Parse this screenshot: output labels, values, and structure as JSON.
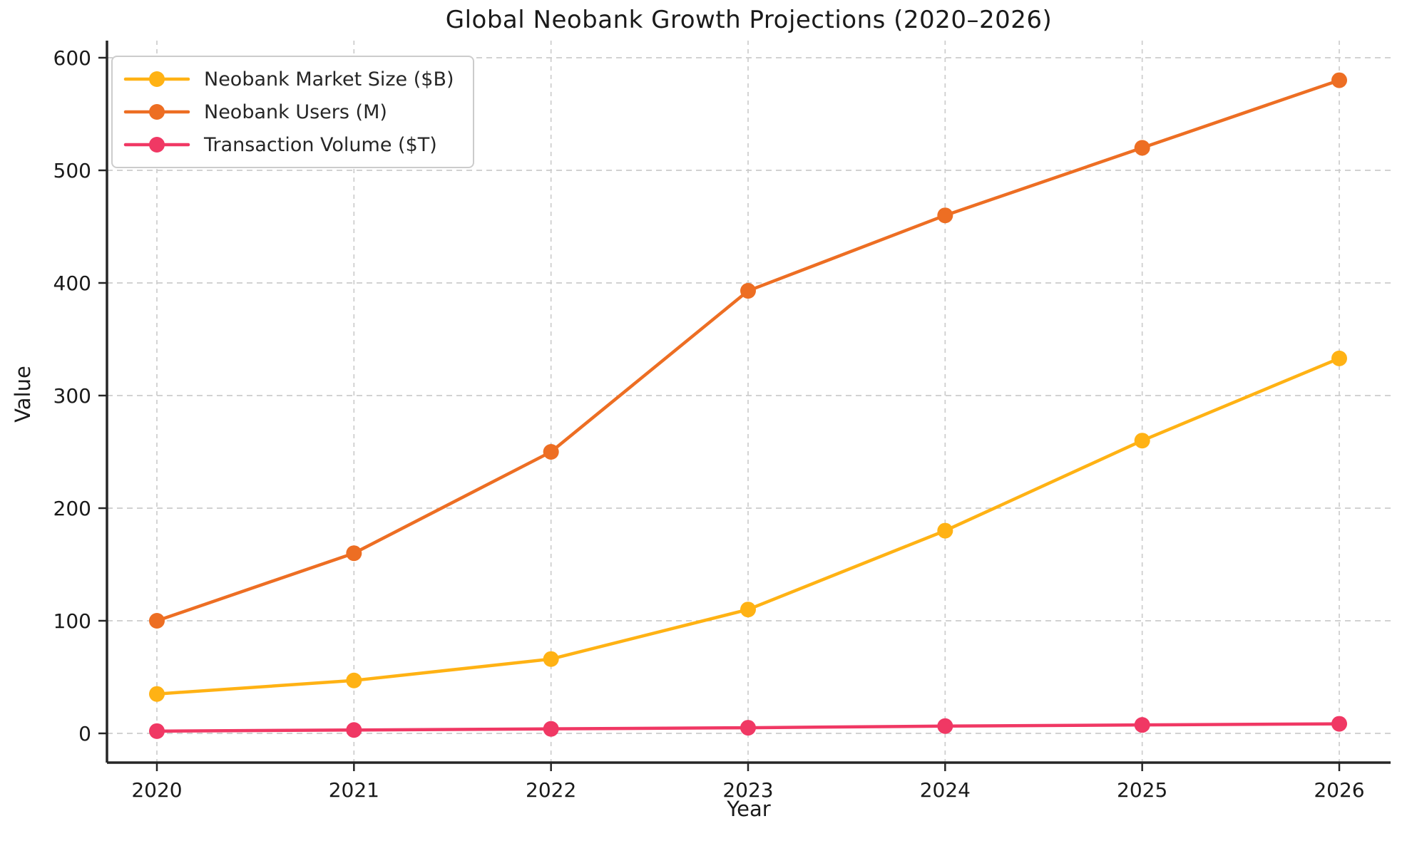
{
  "title": "Global Neobank Growth Projections (2020–2026)",
  "chart_data": {
    "type": "line",
    "title": "Global Neobank Growth Projections (2020–2026)",
    "xlabel": "Year",
    "ylabel": "Value",
    "x": [
      2020,
      2021,
      2022,
      2023,
      2024,
      2025,
      2026
    ],
    "x_tick_labels": [
      "2020",
      "2021",
      "2022",
      "2023",
      "2024",
      "2025",
      "2026"
    ],
    "y_ticks": [
      0,
      100,
      200,
      300,
      400,
      500,
      600
    ],
    "ylim": [
      0,
      600
    ],
    "grid": true,
    "grid_style": "dashed",
    "legend_position": "upper-left",
    "series": [
      {
        "name": "Neobank Market Size ($B)",
        "color": "#FFB214",
        "values": [
          35,
          47,
          66,
          110,
          180,
          260,
          333
        ]
      },
      {
        "name": "Neobank Users (M)",
        "color": "#ED6E23",
        "values": [
          100,
          160,
          250,
          393,
          460,
          520,
          580
        ]
      },
      {
        "name": "Transaction Volume ($T)",
        "color": "#F03864",
        "values": [
          2,
          3,
          4,
          5,
          6.5,
          7.5,
          8.5
        ]
      }
    ]
  }
}
